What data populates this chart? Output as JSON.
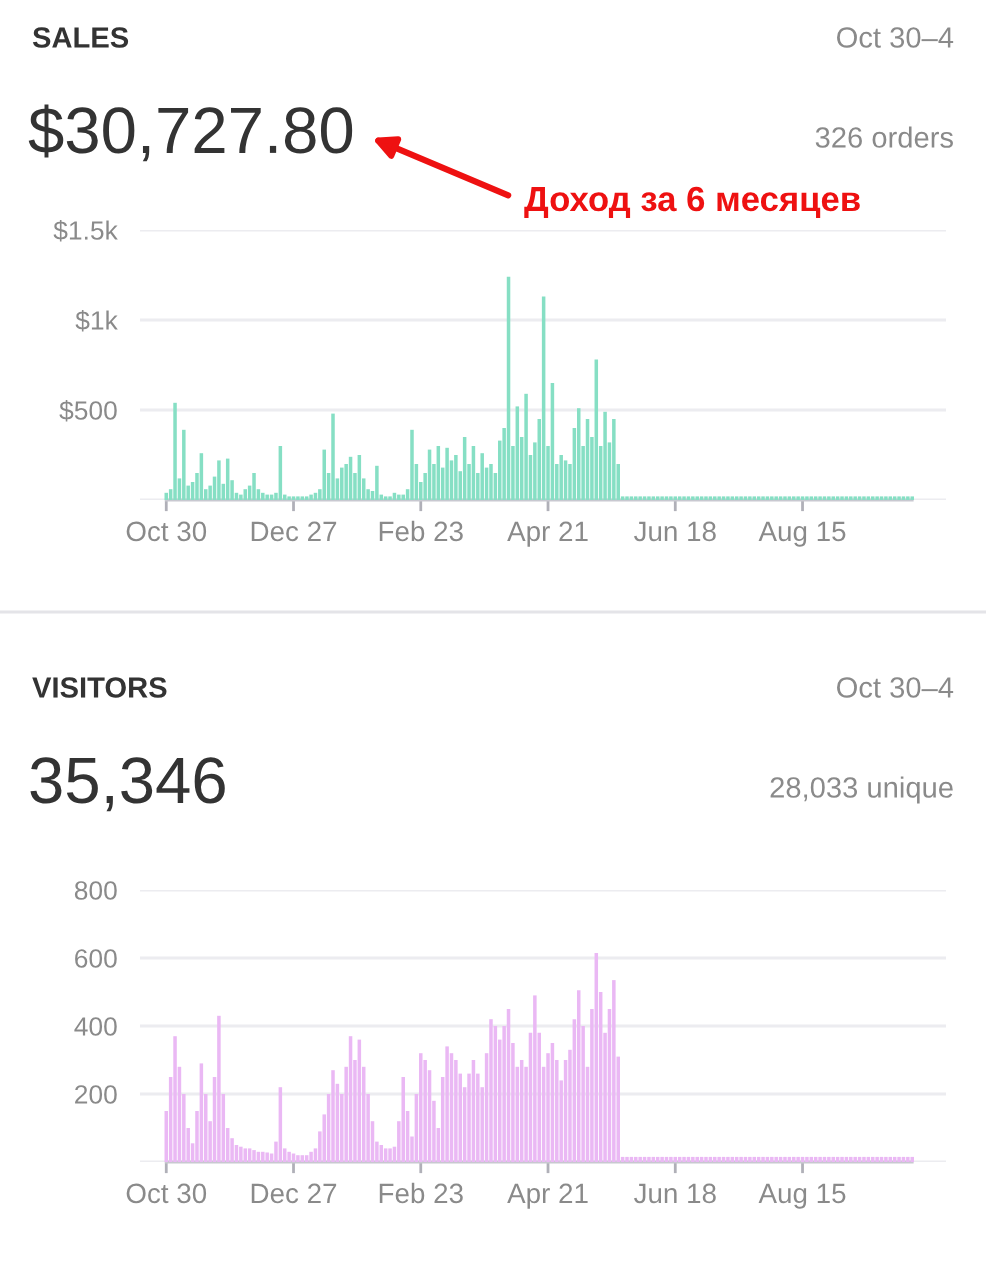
{
  "chart_data": [
    {
      "type": "bar",
      "title": "SALES",
      "annotations": [
        "Oct 30–4",
        "$30,727.80",
        "326 orders",
        "Доход за 6 месяцев"
      ],
      "categories": [
        "Oct 30",
        null,
        null,
        null,
        null,
        null,
        null,
        null,
        null,
        null,
        null,
        null,
        null,
        null,
        null,
        null,
        null,
        null,
        null,
        null,
        null,
        null,
        null,
        null,
        null,
        null,
        null,
        null,
        null,
        "Dec 27",
        null,
        null,
        null,
        null,
        null,
        null,
        null,
        null,
        null,
        null,
        null,
        null,
        null,
        null,
        null,
        null,
        null,
        null,
        null,
        null,
        null,
        null,
        null,
        null,
        null,
        null,
        null,
        null,
        "Feb 23",
        null,
        null,
        null,
        null,
        null,
        null,
        null,
        null,
        null,
        null,
        null,
        null,
        null,
        null,
        null,
        null,
        null,
        null,
        null,
        null,
        null,
        null,
        null,
        null,
        null,
        null,
        null,
        null,
        "Apr 21",
        null,
        null,
        null,
        null,
        null,
        null,
        null,
        null,
        null,
        null,
        null,
        null,
        null,
        null,
        null,
        null,
        null,
        null,
        null,
        null,
        null,
        null,
        null,
        null,
        null,
        null,
        null,
        null,
        "Jun 18",
        null,
        null,
        null,
        null,
        null,
        null,
        null,
        null,
        null,
        null,
        null,
        null,
        null,
        null,
        null,
        null,
        null,
        null,
        null,
        null,
        null,
        null,
        null,
        null,
        null,
        null,
        null,
        null,
        "Aug 15",
        null,
        null,
        null,
        null,
        null,
        null,
        null,
        null,
        null,
        null,
        null,
        null,
        null,
        null,
        null,
        null,
        null,
        null,
        null,
        null,
        null,
        null,
        null,
        null,
        null
      ],
      "series": [
        {
          "color": "#86dfc4",
          "values": [
            40,
            60,
            540,
            120,
            390,
            80,
            100,
            150,
            260,
            60,
            80,
            130,
            220,
            90,
            230,
            110,
            40,
            30,
            60,
            80,
            150,
            60,
            40,
            30,
            30,
            40,
            300,
            30,
            20,
            20,
            20,
            20,
            20,
            30,
            40,
            60,
            280,
            150,
            480,
            120,
            180,
            200,
            240,
            150,
            250,
            120,
            60,
            50,
            190,
            30,
            20,
            20,
            40,
            30,
            30,
            60,
            390,
            200,
            100,
            150,
            280,
            200,
            300,
            180,
            290,
            220,
            250,
            160,
            350,
            200,
            300,
            150,
            260,
            180,
            200,
            150,
            330,
            400,
            1240,
            300,
            520,
            350,
            590,
            250,
            320,
            450,
            1130,
            300,
            650,
            200,
            250,
            220,
            200,
            400,
            510,
            300,
            450,
            350,
            780,
            300,
            490,
            320,
            450,
            200,
            20,
            20,
            20,
            20,
            20,
            20,
            20,
            20,
            20,
            20,
            20,
            20,
            20,
            20,
            20,
            20,
            20,
            20,
            20,
            20,
            20,
            20,
            20,
            20,
            20,
            20,
            20,
            20,
            20,
            20,
            20,
            20,
            20,
            20,
            20,
            20,
            20,
            20,
            20,
            20,
            20,
            20,
            20,
            20,
            20,
            20,
            20,
            20,
            20,
            20,
            20,
            20,
            20,
            20,
            20,
            20,
            20,
            20,
            20,
            20,
            20,
            20,
            20,
            20,
            20,
            20,
            20
          ]
        }
      ],
      "ylim": [
        0,
        1500
      ],
      "yticks": [
        {
          "value": 0,
          "label": null
        },
        {
          "value": 500,
          "label": "$500"
        },
        {
          "value": 1000,
          "label": "$1k"
        },
        {
          "value": 1500,
          "label": "$1.5k"
        }
      ],
      "grid": "y",
      "legend": false
    },
    {
      "type": "bar",
      "title": "VISITORS",
      "annotations": [
        "Oct 30–4",
        "35,346",
        "28,033 unique"
      ],
      "categories": [
        "Oct 30",
        null,
        null,
        null,
        null,
        null,
        null,
        null,
        null,
        null,
        null,
        null,
        null,
        null,
        null,
        null,
        null,
        null,
        null,
        null,
        null,
        null,
        null,
        null,
        null,
        null,
        null,
        null,
        null,
        "Dec 27",
        null,
        null,
        null,
        null,
        null,
        null,
        null,
        null,
        null,
        null,
        null,
        null,
        null,
        null,
        null,
        null,
        null,
        null,
        null,
        null,
        null,
        null,
        null,
        null,
        null,
        null,
        null,
        null,
        "Feb 23",
        null,
        null,
        null,
        null,
        null,
        null,
        null,
        null,
        null,
        null,
        null,
        null,
        null,
        null,
        null,
        null,
        null,
        null,
        null,
        null,
        null,
        null,
        null,
        null,
        null,
        null,
        null,
        null,
        "Apr 21",
        null,
        null,
        null,
        null,
        null,
        null,
        null,
        null,
        null,
        null,
        null,
        null,
        null,
        null,
        null,
        null,
        null,
        null,
        null,
        null,
        null,
        null,
        null,
        null,
        null,
        null,
        null,
        null,
        "Jun 18",
        null,
        null,
        null,
        null,
        null,
        null,
        null,
        null,
        null,
        null,
        null,
        null,
        null,
        null,
        null,
        null,
        null,
        null,
        null,
        null,
        null,
        null,
        null,
        null,
        null,
        null,
        null,
        null,
        "Aug 15",
        null,
        null,
        null,
        null,
        null,
        null,
        null,
        null,
        null,
        null,
        null,
        null,
        null,
        null,
        null,
        null,
        null,
        null,
        null,
        null,
        null,
        null,
        null,
        null,
        null
      ],
      "series": [
        {
          "color": "#eab8f4",
          "values": [
            150,
            250,
            370,
            280,
            200,
            100,
            55,
            150,
            290,
            200,
            120,
            250,
            430,
            200,
            100,
            70,
            50,
            45,
            40,
            40,
            35,
            30,
            30,
            28,
            25,
            60,
            220,
            40,
            30,
            25,
            20,
            20,
            20,
            30,
            40,
            90,
            140,
            200,
            270,
            230,
            200,
            280,
            370,
            300,
            360,
            280,
            200,
            120,
            60,
            50,
            40,
            40,
            45,
            120,
            250,
            150,
            75,
            200,
            320,
            300,
            270,
            180,
            100,
            250,
            340,
            320,
            300,
            260,
            220,
            260,
            300,
            260,
            220,
            320,
            420,
            400,
            360,
            400,
            450,
            350,
            280,
            300,
            280,
            380,
            490,
            380,
            280,
            320,
            350,
            300,
            240,
            300,
            330,
            420,
            505,
            400,
            280,
            450,
            615,
            500,
            380,
            450,
            535,
            310,
            15,
            15,
            15,
            15,
            15,
            15,
            15,
            15,
            15,
            15,
            15,
            15,
            15,
            15,
            15,
            15,
            15,
            15,
            15,
            15,
            15,
            15,
            15,
            15,
            15,
            15,
            15,
            15,
            15,
            15,
            15,
            15,
            15,
            15,
            15,
            15,
            15,
            15,
            15,
            15,
            15,
            15,
            15,
            15,
            15,
            15,
            15,
            15,
            15,
            15,
            15,
            15,
            15,
            15,
            15,
            15,
            15,
            15,
            15,
            15,
            15,
            15,
            15,
            15,
            15,
            15,
            15
          ]
        }
      ],
      "ylim": [
        0,
        800
      ],
      "yticks": [
        {
          "value": 0,
          "label": null
        },
        200,
        400,
        600,
        800
      ],
      "grid": "y",
      "legend": false
    }
  ]
}
